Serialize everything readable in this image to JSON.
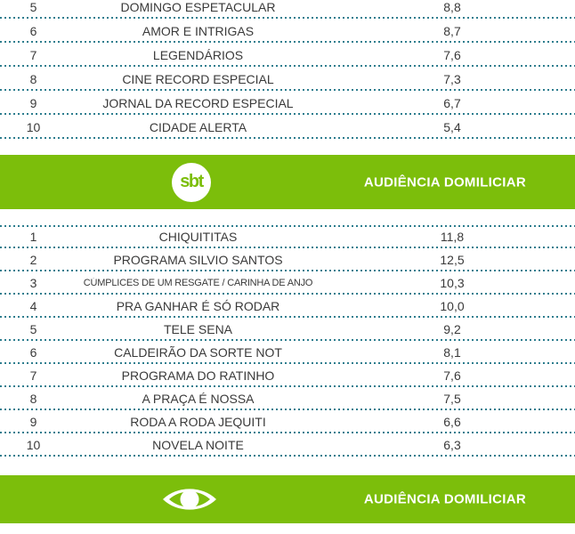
{
  "colors": {
    "accent_green": "#7cbe0b",
    "dotted_line": "#2d7d8e",
    "row_text": "#3a3a3a",
    "header_text": "#ffffff"
  },
  "headers": {
    "sbt": {
      "logo_text": "sbt",
      "title": "AUDIÊNCIA DOMILICIAR"
    },
    "band": {
      "logo_icon": "band-eye-icon",
      "title": "AUDIÊNCIA DOMILICIAR"
    }
  },
  "tables": {
    "record": {
      "rows": [
        {
          "rank": "5",
          "program": "DOMINGO ESPETACULAR",
          "rating": "8,8"
        },
        {
          "rank": "6",
          "program": "AMOR E INTRIGAS",
          "rating": "8,7"
        },
        {
          "rank": "7",
          "program": "LEGENDÁRIOS",
          "rating": "7,6"
        },
        {
          "rank": "8",
          "program": "CINE RECORD ESPECIAL",
          "rating": "7,3"
        },
        {
          "rank": "9",
          "program": "JORNAL DA RECORD ESPECIAL",
          "rating": "6,7"
        },
        {
          "rank": "10",
          "program": "CIDADE ALERTA",
          "rating": "5,4"
        }
      ]
    },
    "sbt": {
      "rows": [
        {
          "rank": "1",
          "program": "CHIQUITITAS",
          "rating": "11,8"
        },
        {
          "rank": "2",
          "program": "PROGRAMA SILVIO SANTOS",
          "rating": "12,5"
        },
        {
          "rank": "3",
          "program": "CÚMPLICES DE UM RESGATE / CARINHA DE ANJO",
          "rating": "10,3",
          "small": true
        },
        {
          "rank": "4",
          "program": "PRA GANHAR É SÓ RODAR",
          "rating": "10,0"
        },
        {
          "rank": "5",
          "program": "TELE SENA",
          "rating": "9,2"
        },
        {
          "rank": "6",
          "program": "CALDEIRÃO DA SORTE NOT",
          "rating": "8,1"
        },
        {
          "rank": "7",
          "program": "PROGRAMA DO RATINHO",
          "rating": "7,6"
        },
        {
          "rank": "8",
          "program": "A PRAÇA É NOSSA",
          "rating": "7,5"
        },
        {
          "rank": "9",
          "program": "RODA A RODA JEQUITI",
          "rating": "6,6"
        },
        {
          "rank": "10",
          "program": "NOVELA NOITE",
          "rating": "6,3"
        }
      ]
    }
  },
  "chart_data": [
    {
      "type": "table",
      "title": "",
      "note": "partial ranking table, ranks 5-10, cut off at top of image",
      "columns": [
        "rank",
        "program",
        "rating"
      ],
      "rows": [
        [
          5,
          "DOMINGO ESPETACULAR",
          8.8
        ],
        [
          6,
          "AMOR E INTRIGAS",
          8.7
        ],
        [
          7,
          "LEGENDÁRIOS",
          7.6
        ],
        [
          8,
          "CINE RECORD ESPECIAL",
          7.3
        ],
        [
          9,
          "JORNAL DA RECORD ESPECIAL",
          6.7
        ],
        [
          10,
          "CIDADE ALERTA",
          5.4
        ]
      ]
    },
    {
      "type": "table",
      "title": "AUDIÊNCIA DOMILICIAR",
      "note": "SBT ranking table, ranks 1-10",
      "columns": [
        "rank",
        "program",
        "rating"
      ],
      "rows": [
        [
          1,
          "CHIQUITITAS",
          11.8
        ],
        [
          2,
          "PROGRAMA SILVIO SANTOS",
          12.5
        ],
        [
          3,
          "CÚMPLICES DE UM RESGATE / CARINHA DE ANJO",
          10.3
        ],
        [
          4,
          "PRA GANHAR É SÓ RODAR",
          10.0
        ],
        [
          5,
          "TELE SENA",
          9.2
        ],
        [
          6,
          "CALDEIRÃO DA SORTE NOT",
          8.1
        ],
        [
          7,
          "PROGRAMA DO RATINHO",
          7.6
        ],
        [
          8,
          "A PRAÇA É NOSSA",
          7.5
        ],
        [
          9,
          "RODA A RODA JEQUITI",
          6.6
        ],
        [
          10,
          "NOVELA NOITE",
          6.3
        ]
      ]
    }
  ]
}
